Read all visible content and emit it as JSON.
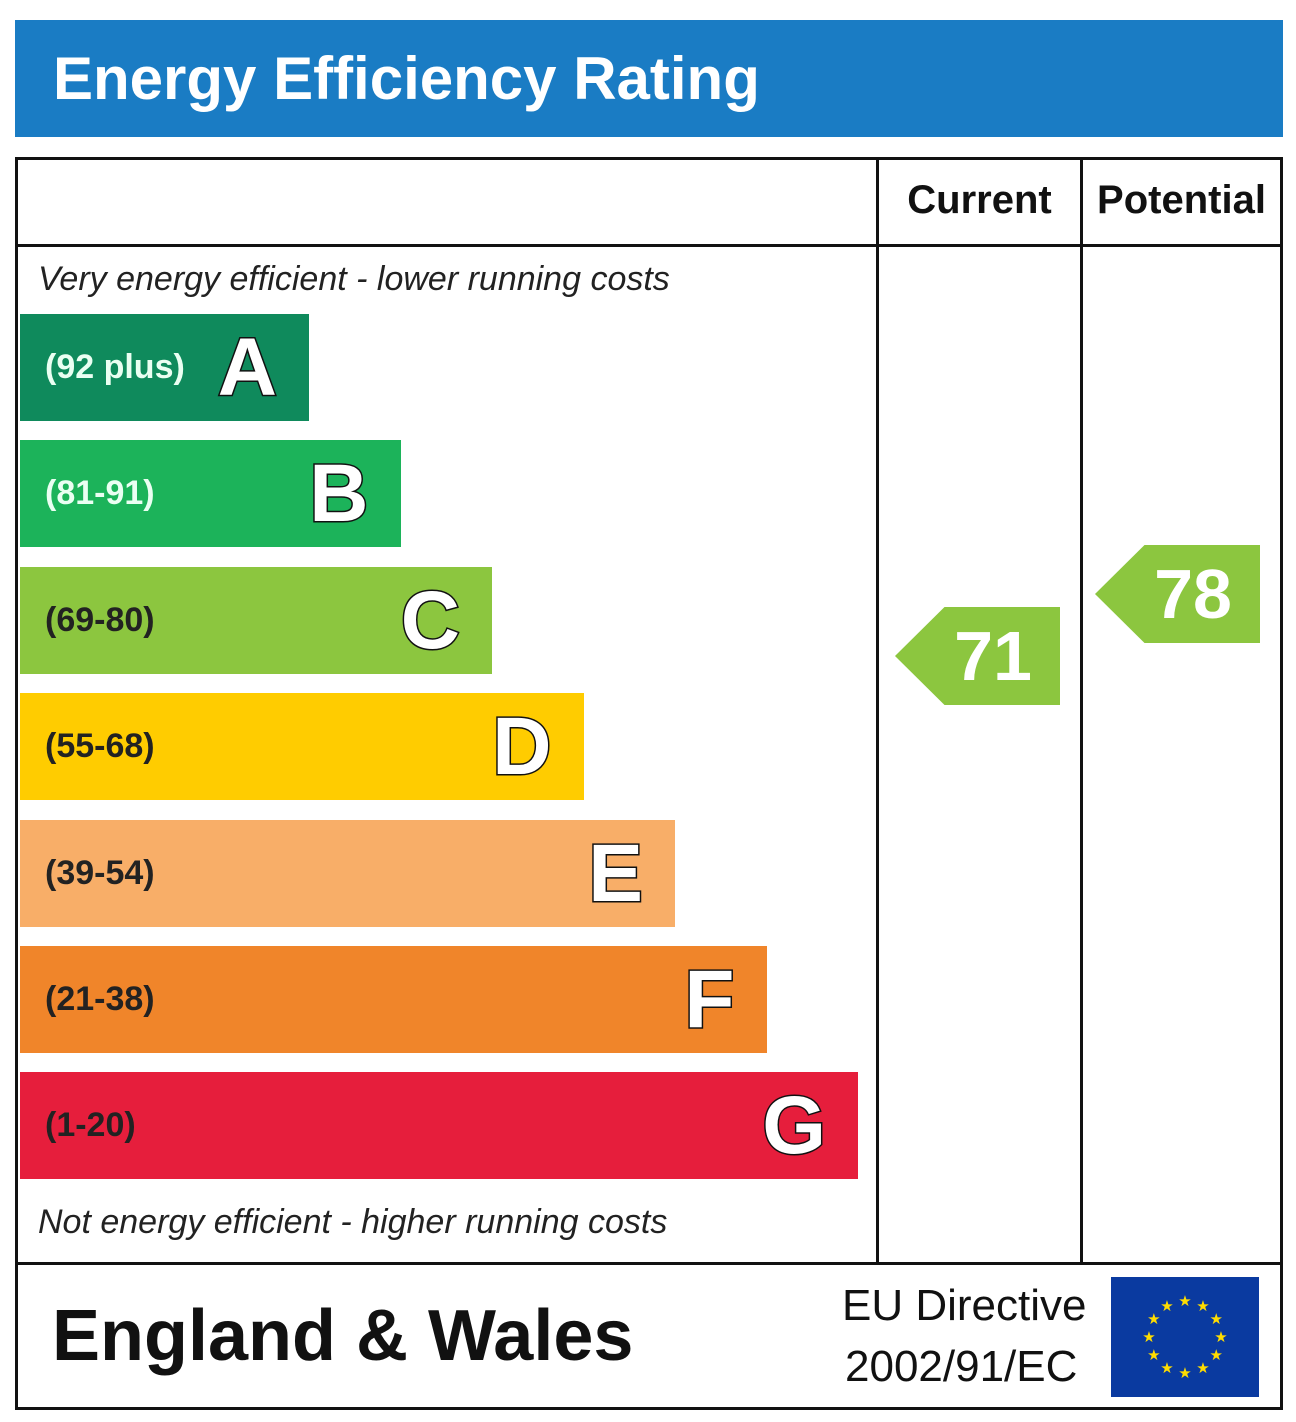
{
  "title": "Energy Efficiency Rating",
  "columns": {
    "current": "Current",
    "potential": "Potential"
  },
  "notes": {
    "top": "Very energy efficient - lower running costs",
    "bottom": "Not energy efficient - higher running costs"
  },
  "footer": {
    "region": "England & Wales",
    "directive_line1": "EU Directive",
    "directive_line2": "2002/91/EC",
    "flag_icon": "eu-flag-icon"
  },
  "chart_data": {
    "type": "bar",
    "categories": [
      "A",
      "B",
      "C",
      "D",
      "E",
      "F",
      "G"
    ],
    "ranges": [
      "(92 plus)",
      "(81-91)",
      "(69-80)",
      "(55-68)",
      "(39-54)",
      "(21-38)",
      "(1-20)"
    ],
    "colors": [
      "#0f8a5c",
      "#1cb35a",
      "#8cc63f",
      "#ffcc00",
      "#f8ae68",
      "#f0852a",
      "#e61e3c"
    ],
    "current": {
      "value": 71,
      "band": "C",
      "color": "#8cc63f"
    },
    "potential": {
      "value": 78,
      "band": "C",
      "color": "#8cc63f"
    }
  }
}
